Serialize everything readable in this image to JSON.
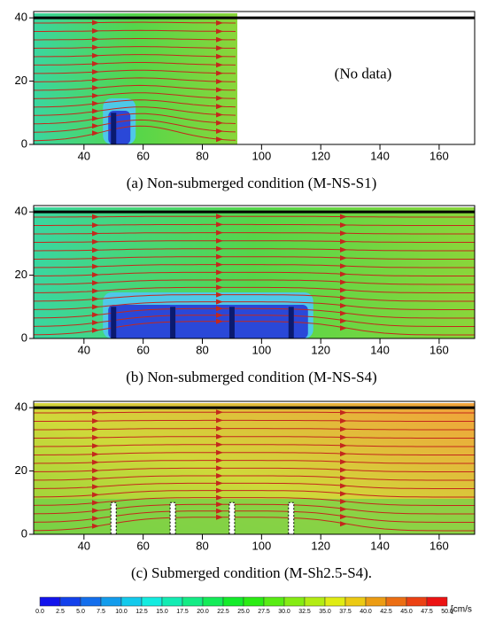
{
  "chart_data": [
    {
      "type": "streamline",
      "caption": "(a) Non-submerged condition (M-NS-S1)",
      "annotation": "(No data)",
      "xlim": [
        23,
        172
      ],
      "ylim": [
        0,
        42
      ],
      "xticks": [
        40,
        60,
        80,
        100,
        120,
        140,
        160
      ],
      "yticks": [
        0,
        20,
        40
      ],
      "water_level": 40,
      "obstacle_x": [
        50
      ],
      "obstacle_height": 10
    },
    {
      "type": "streamline",
      "caption": "(b) Non-submerged condition (M-NS-S4)",
      "xlim": [
        23,
        172
      ],
      "ylim": [
        0,
        42
      ],
      "xticks": [
        40,
        60,
        80,
        100,
        120,
        140,
        160
      ],
      "yticks": [
        0,
        20,
        40
      ],
      "water_level": 40,
      "obstacle_x": [
        50,
        70,
        90,
        110
      ],
      "obstacle_height": 10
    },
    {
      "type": "streamline",
      "caption": "(c) Submerged condition (M-Sh2.5-S4).",
      "xlim": [
        23,
        172
      ],
      "ylim": [
        0,
        42
      ],
      "xticks": [
        40,
        60,
        80,
        100,
        120,
        140,
        160
      ],
      "yticks": [
        0,
        20,
        40
      ],
      "water_level": 40,
      "obstacle_x": [
        50,
        70,
        90,
        110
      ],
      "obstacle_height": 10
    },
    {
      "type": "colorbar",
      "unit": "[cm/s",
      "ticks": [
        {
          "value": 0,
          "label": "0.0"
        },
        2.5,
        {
          "value": 5,
          "label": "5.0"
        },
        7.5,
        {
          "value": 10,
          "label": "10.0"
        },
        12.5,
        {
          "value": 15,
          "label": "15.0"
        },
        17.5,
        {
          "value": 20,
          "label": "20.0"
        },
        22.5,
        {
          "value": 25,
          "label": "25.0"
        },
        27.5,
        {
          "value": 30,
          "label": "30.0"
        },
        32.5,
        {
          "value": 35,
          "label": "35.0"
        },
        37.5,
        {
          "value": 40,
          "label": "40.0"
        },
        42.5,
        {
          "value": 45,
          "label": "45.0"
        },
        47.5,
        {
          "value": 50,
          "label": "50.0"
        }
      ]
    }
  ]
}
